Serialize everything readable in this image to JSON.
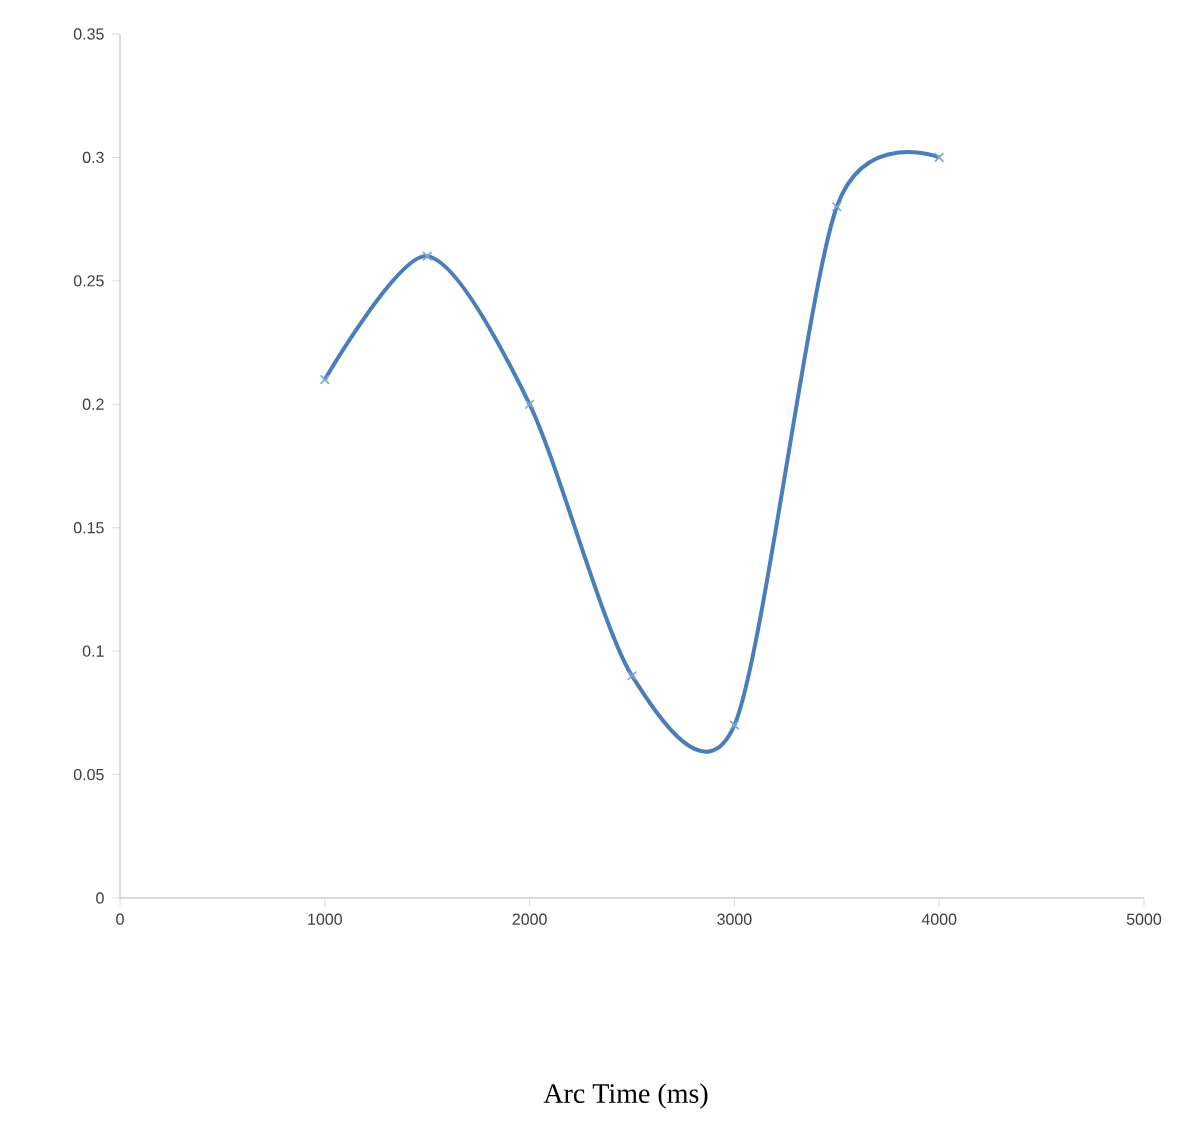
{
  "chart_data": {
    "type": "line",
    "annotations": [
      "Arc Time (ms)"
    ],
    "x": [
      1000,
      1500,
      2000,
      2500,
      3000,
      3500,
      4000
    ],
    "series": [
      {
        "color": "#4a7ebb",
        "values": [
          0.21,
          0.26,
          0.2,
          0.09,
          0.07,
          0.28,
          0.3
        ]
      }
    ],
    "xlim": [
      0,
      5000
    ],
    "xticks": [
      0,
      1000,
      2000,
      3000,
      4000,
      5000
    ],
    "ylim": [
      0,
      0.35
    ],
    "yticks": [
      0,
      0.05,
      0.1,
      0.15,
      0.2,
      0.25,
      0.3,
      0.35
    ],
    "grid": false,
    "marker": "cross",
    "line_style": "solid"
  }
}
